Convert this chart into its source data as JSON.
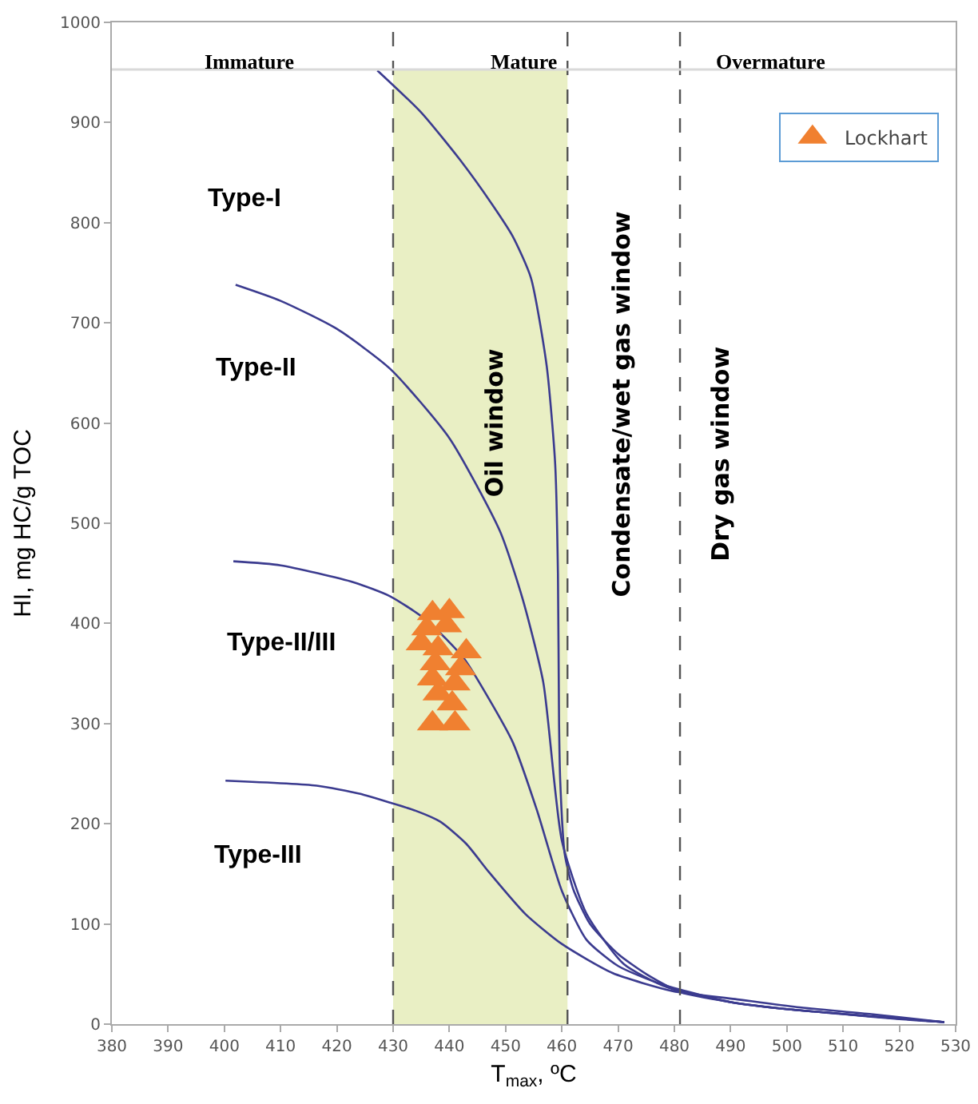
{
  "chart_data": {
    "type": "line",
    "xlabel": "T$_{max}$, ºC",
    "ylabel": "HI, mg HC/g TOC",
    "xlim": [
      380,
      530
    ],
    "xticks": [
      380,
      390,
      400,
      410,
      420,
      430,
      440,
      450,
      460,
      470,
      480,
      490,
      500,
      510,
      520,
      530
    ],
    "ylim": [
      0,
      1000
    ],
    "yticks": [
      0,
      100,
      200,
      300,
      400,
      500,
      600,
      700,
      800,
      900,
      1000
    ],
    "grid": false,
    "legend": "top right",
    "series": [
      {
        "color": "#3b3b8f",
        "x": [
          427.2,
          435,
          442,
          448,
          451.3,
          454.5,
          457.3,
          458.8,
          459.3,
          459.5,
          459.7,
          460.5,
          462,
          465,
          470,
          475,
          481,
          490,
          500,
          510,
          520,
          528
        ],
        "values": [
          952,
          910,
          862,
          815,
          786,
          745,
          657,
          560,
          450,
          300,
          244,
          170,
          135,
          100,
          70,
          50,
          32,
          22,
          15,
          10,
          5,
          2
        ]
      },
      {
        "color": "#3b3b8f",
        "x": [
          402,
          410,
          420,
          429.5,
          440,
          449,
          453,
          456.7,
          460,
          464.4,
          471,
          478.6,
          490,
          500,
          528
        ],
        "values": [
          738,
          722,
          694,
          654,
          585,
          492,
          425,
          341,
          183,
          110,
          60,
          37,
          22,
          15,
          2
        ]
      },
      {
        "color": "#3b3b8f",
        "x": [
          401.6,
          410,
          423,
          429.5,
          436,
          442.6,
          447,
          451.3,
          455.6,
          460,
          464.4,
          470,
          477.6,
          490,
          500,
          528
        ],
        "values": [
          462,
          458,
          441,
          427,
          403,
          365,
          325,
          281,
          213,
          133,
          84,
          58,
          40,
          22,
          15,
          2
        ]
      },
      {
        "color": "#3b3b8f",
        "x": [
          400.2,
          416.4,
          424,
          429.5,
          434,
          438.4,
          443,
          447,
          453.5,
          460,
          469,
          479.7,
          490.8,
          501.8,
          515,
          528
        ],
        "values": [
          243,
          238,
          230,
          221,
          213,
          202,
          180,
          152,
          110,
          80,
          51,
          33,
          25,
          17,
          10,
          2
        ]
      },
      {
        "type": "scatter",
        "name": "Lockhart",
        "color": "#f08030",
        "marker": "triangle",
        "x": [
          437,
          440,
          436,
          439.5,
          435,
          438,
          443,
          437.5,
          442,
          437,
          441,
          438,
          440.5,
          437,
          441
        ],
        "values": [
          410,
          412,
          395,
          398,
          380,
          375,
          372,
          360,
          355,
          345,
          340,
          330,
          320,
          300,
          300
        ]
      }
    ],
    "ref_lines": [
      {
        "axis": "x",
        "value": 430,
        "line_style": "dashed",
        "color": "#555555"
      },
      {
        "axis": "x",
        "value": 461,
        "line_style": "dashed",
        "color": "#555555"
      },
      {
        "axis": "x",
        "value": 481,
        "line_style": "dashed",
        "color": "#555555"
      },
      {
        "axis": "y",
        "value": 953,
        "line_style": "solid",
        "color": "#d9d9d9"
      }
    ],
    "bands": [
      {
        "axis": "x",
        "from": 430,
        "to": 461,
        "label": "Oil window",
        "color": "#e9efc4"
      }
    ],
    "annotations": [
      "Immature",
      "Mature",
      "Overmature",
      "Condensate/wet gas window",
      "Dry gas window",
      "Type-I",
      "Type-II",
      "Type-II/III",
      "Type-III"
    ]
  }
}
